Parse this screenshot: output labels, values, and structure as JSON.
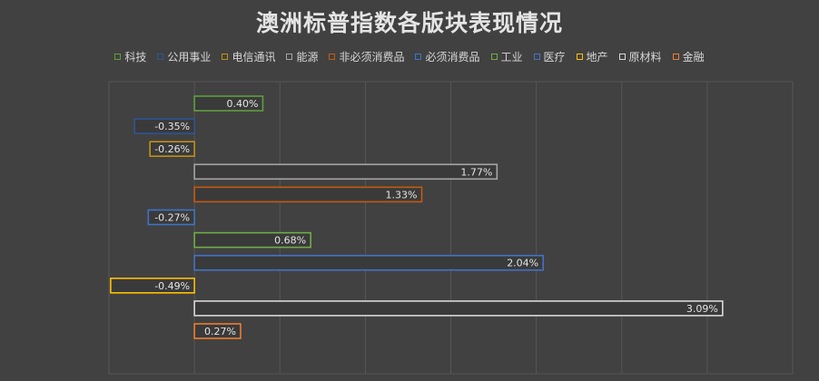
{
  "chart_data": {
    "type": "bar",
    "orientation": "horizontal",
    "title": "澳洲标普指数各版块表现情况",
    "categories": [
      "科技",
      "公用事业",
      "电信通讯",
      "能源",
      "非必须消费品",
      "必须消费品",
      "工业",
      "医疗",
      "地产",
      "原材料",
      "金融"
    ],
    "values": [
      0.4,
      -0.35,
      -0.26,
      1.77,
      1.33,
      -0.27,
      0.68,
      2.04,
      -0.49,
      3.09,
      0.27
    ],
    "labels": [
      "0.40%",
      "-0.35%",
      "-0.26%",
      "1.77%",
      "1.33%",
      "-0.27%",
      "0.68%",
      "2.04%",
      "-0.49%",
      "3.09%",
      "0.27%"
    ],
    "colors": [
      "#5f9e3c",
      "#2f5497",
      "#c1901a",
      "#a5a5a5",
      "#c55a11",
      "#3e74c4",
      "#70ad47",
      "#4472c4",
      "#ffc000",
      "#d8d8d8",
      "#ed7d31"
    ],
    "xlim": [
      -0.5,
      3.5
    ],
    "grid": true,
    "legend_position": "top"
  }
}
